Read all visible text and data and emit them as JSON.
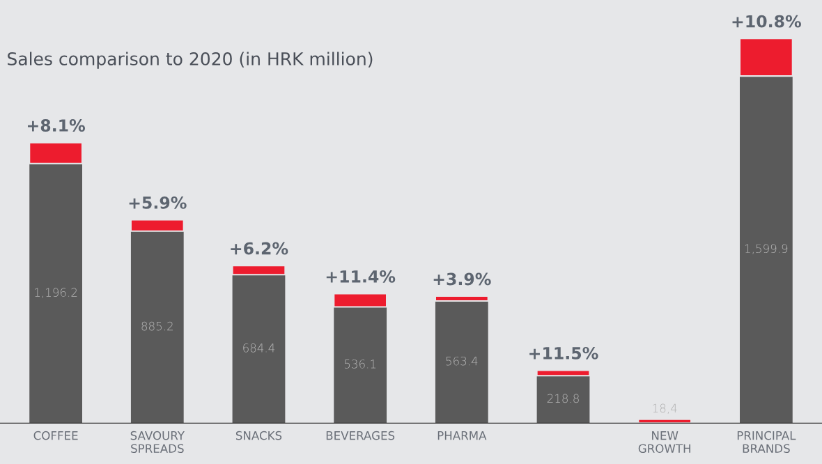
{
  "chart_data": {
    "type": "bar",
    "title": "Sales comparison to 2020 (in HRK million)",
    "stacked": true,
    "categories": [
      "COFFEE",
      "SAVOURY\nSPREADS",
      "SNACKS",
      "BEVERAGES",
      "PHARMA",
      null,
      "NEW\nGROWTH",
      "PRINCIPAL\nBRANDS"
    ],
    "series": [
      {
        "color": "#5a5a5a",
        "values": [
          1196.2,
          885.2,
          684.4,
          536.1,
          563.4,
          218.8,
          null,
          1599.9
        ],
        "value_labels": [
          "1,196.2",
          "885.2",
          "684.4",
          "536.1",
          "563.4",
          "218.8",
          null,
          "1,599.9"
        ]
      },
      {
        "color": "#ed1c2e",
        "values": [
          97,
          52,
          42,
          61,
          22,
          25,
          18.4,
          173
        ],
        "value_labels": [
          null,
          null,
          null,
          null,
          null,
          null,
          "18,4",
          null
        ]
      }
    ],
    "annotations": [
      {
        "text": "+8.1%",
        "x": "COFFEE",
        "y": 1293.2
      },
      {
        "text": "+5.9%",
        "x": "SAVOURY\nSPREADS",
        "y": 937.2
      },
      {
        "text": "+6.2%",
        "x": "SNACKS",
        "y": 726.4
      },
      {
        "text": "+11.4%",
        "x": "BEVERAGES",
        "y": 597.1
      },
      {
        "text": "+3.9%",
        "x": "PHARMA",
        "y": 585.4
      },
      {
        "text": "+11.5%",
        "y": 243.8
      },
      {
        "text": "+10.8%",
        "x": "PRINCIPAL\nBRANDS",
        "y": 1772.9
      }
    ],
    "grid": false,
    "legend": false
  }
}
